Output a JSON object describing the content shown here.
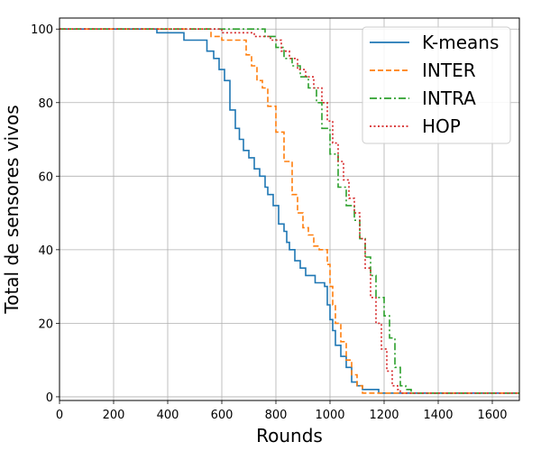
{
  "chart_data": {
    "type": "line",
    "title": "",
    "xlabel": "Rounds",
    "ylabel": "Total de sensores vivos",
    "xlim": [
      0,
      1700
    ],
    "ylim": [
      -1,
      103
    ],
    "xticks": [
      0,
      200,
      400,
      600,
      800,
      1000,
      1200,
      1400,
      1600
    ],
    "yticks": [
      0,
      20,
      40,
      60,
      80,
      100
    ],
    "grid": true,
    "legend_position": "top-right",
    "series": [
      {
        "name": "K-means",
        "color": "#1f77b4",
        "style": "solid",
        "step": true,
        "x": [
          0,
          360,
          460,
          545,
          570,
          590,
          610,
          630,
          650,
          665,
          680,
          700,
          720,
          740,
          760,
          770,
          790,
          810,
          830,
          840,
          850,
          870,
          890,
          910,
          925,
          945,
          980,
          990,
          1000,
          1010,
          1020,
          1040,
          1060,
          1080,
          1100,
          1120,
          1140,
          1160,
          1180,
          1200,
          1700
        ],
        "y": [
          100,
          99,
          97,
          94,
          92,
          89,
          86,
          78,
          73,
          70,
          67,
          65,
          62,
          60,
          57,
          55,
          52,
          47,
          45,
          42,
          40,
          37,
          35,
          33,
          33,
          31,
          30,
          25,
          21,
          18,
          14,
          11,
          8,
          4,
          3,
          2,
          2,
          2,
          1,
          1,
          1
        ]
      },
      {
        "name": "INTER",
        "color": "#ff7f0e",
        "style": "dashed",
        "step": true,
        "x": [
          0,
          560,
          600,
          690,
          710,
          730,
          750,
          770,
          800,
          830,
          860,
          880,
          900,
          920,
          940,
          960,
          990,
          1000,
          1010,
          1020,
          1040,
          1060,
          1080,
          1100,
          1120,
          1700
        ],
        "y": [
          100,
          98,
          97,
          93,
          90,
          86,
          84,
          79,
          72,
          64,
          55,
          50,
          46,
          44,
          41,
          40,
          36,
          30,
          25,
          20,
          15,
          10,
          6,
          3,
          1,
          1
        ]
      },
      {
        "name": "INTRA",
        "color": "#2ca02c",
        "style": "dashdot",
        "step": true,
        "x": [
          0,
          760,
          800,
          830,
          860,
          890,
          920,
          950,
          970,
          1000,
          1030,
          1060,
          1090,
          1110,
          1130,
          1150,
          1170,
          1200,
          1220,
          1240,
          1260,
          1280,
          1300,
          1700
        ],
        "y": [
          100,
          98,
          95,
          92,
          90,
          87,
          84,
          80,
          73,
          66,
          57,
          52,
          48,
          43,
          38,
          33,
          27,
          22,
          16,
          8,
          3,
          2,
          1,
          1
        ]
      },
      {
        "name": "HOP",
        "color": "#d62728",
        "style": "dotted",
        "step": true,
        "x": [
          0,
          600,
          650,
          720,
          780,
          820,
          850,
          880,
          910,
          940,
          970,
          990,
          1010,
          1030,
          1050,
          1070,
          1090,
          1110,
          1130,
          1150,
          1170,
          1190,
          1210,
          1230,
          1250,
          1260,
          1700
        ],
        "y": [
          100,
          99,
          99,
          98,
          97,
          94,
          92,
          89,
          87,
          84,
          80,
          75,
          69,
          64,
          59,
          54,
          50,
          43,
          35,
          27,
          20,
          13,
          7,
          3,
          2,
          1,
          1
        ]
      }
    ]
  }
}
